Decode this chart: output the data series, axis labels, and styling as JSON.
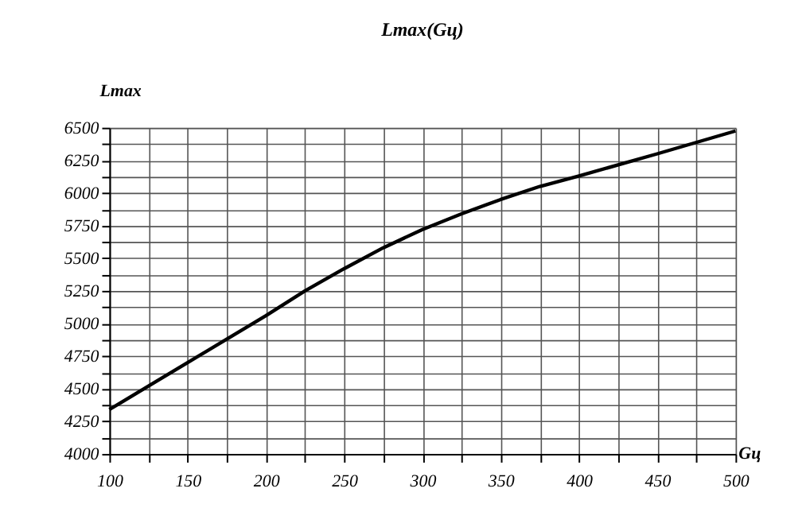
{
  "chart_data": {
    "type": "line",
    "title": "Lmax(Gц)",
    "xlabel": "Gц",
    "ylabel": "Lmax",
    "x": [
      100,
      125,
      150,
      175,
      200,
      225,
      250,
      275,
      300,
      325,
      350,
      375,
      400,
      450,
      500
    ],
    "series": [
      {
        "color": "#000000",
        "values": [
          4340,
          4520,
          4700,
          4880,
          5060,
          5250,
          5420,
          5580,
          5720,
          5840,
          5950,
          6050,
          6130,
          6300,
          6475
        ]
      }
    ],
    "xlim": [
      100,
      500
    ],
    "xticks": [
      100,
      {
        "value": 125,
        "label": null
      },
      150,
      {
        "value": 175,
        "label": null
      },
      200,
      {
        "value": 225,
        "label": null
      },
      250,
      {
        "value": 275,
        "label": null
      },
      300,
      {
        "value": 325,
        "label": null
      },
      350,
      {
        "value": 375,
        "label": null
      },
      400,
      {
        "value": 425,
        "label": null
      },
      450,
      {
        "value": 475,
        "label": null
      },
      500
    ],
    "ylim": [
      4000,
      6500
    ],
    "yticks": [
      4000,
      {
        "value": 4125,
        "label": null
      },
      4250,
      {
        "value": 4375,
        "label": null
      },
      4500,
      {
        "value": 4625,
        "label": null
      },
      4750,
      {
        "value": 4875,
        "label": null
      },
      5000,
      {
        "value": 5125,
        "label": null
      },
      5250,
      {
        "value": 5375,
        "label": null
      },
      5500,
      {
        "value": 5625,
        "label": null
      },
      5750,
      {
        "value": 5875,
        "label": null
      },
      6000,
      {
        "value": 6125,
        "label": null
      },
      6250,
      {
        "value": 6375,
        "label": null
      },
      6500
    ],
    "grid": true,
    "marker": "none",
    "line_style": "solid",
    "legend": false
  }
}
